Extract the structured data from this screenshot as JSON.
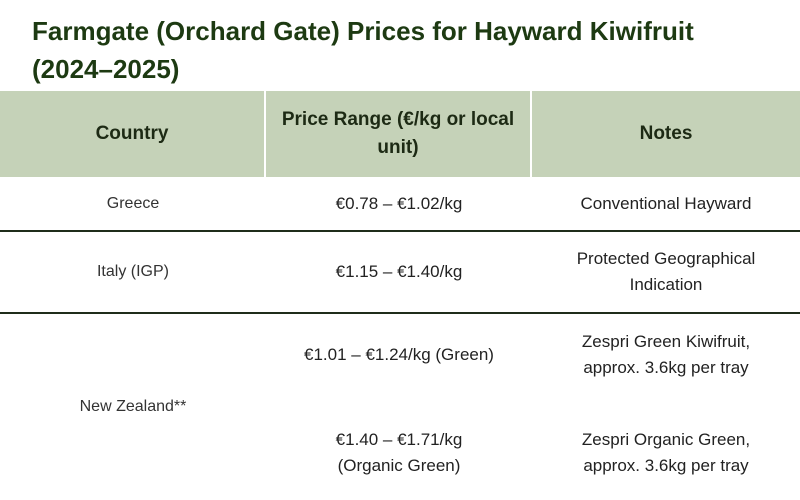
{
  "title": "Farmgate (Orchard Gate) Prices for Hayward Kiwifruit (2024–2025)",
  "table": {
    "headers": {
      "country": "Country",
      "price": "Price Range (€/kg or local unit)",
      "notes": "Notes"
    },
    "rows": [
      {
        "country": "Greece",
        "price": "€0.78 – €1.02/kg",
        "notes": "Conventional Hayward"
      },
      {
        "country": "Italy (IGP)",
        "price": "€1.15 – €1.40/kg",
        "notes": "Protected Geographical Indication"
      },
      {
        "country": "New Zealand**",
        "entries": [
          {
            "price": "€1.01 – €1.24/kg (Green)",
            "notes": "Zespri Green Kiwifruit, approx. 3.6kg per tray"
          },
          {
            "price": "€1.40 – €1.71/kg (Organic Green)",
            "notes": "Zespri Organic Green, approx. 3.6kg per tray"
          }
        ]
      }
    ]
  },
  "colors": {
    "title": "#1d3a12",
    "header_bg": "#c5d2b8",
    "row_divider": "#1f2d1a"
  }
}
